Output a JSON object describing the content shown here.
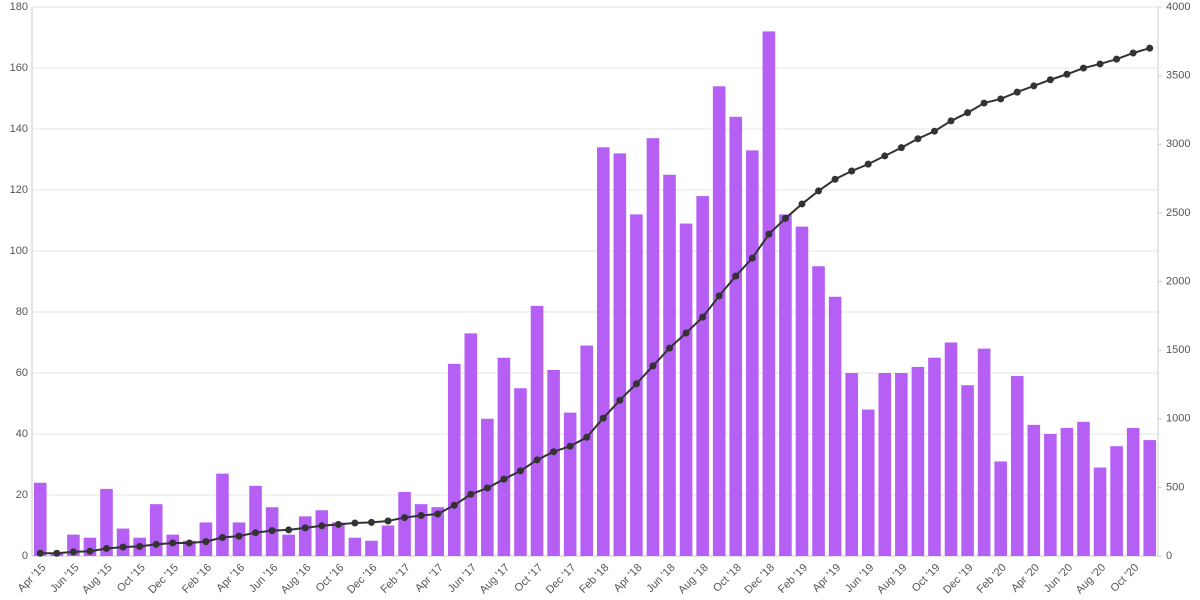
{
  "chart_data": {
    "type": "bar",
    "categories": [
      "Apr '15",
      null,
      "Jun '15",
      null,
      "Aug '15",
      null,
      "Oct '15",
      null,
      "Dec '15",
      null,
      "Feb '16",
      null,
      "Apr '16",
      null,
      "Jun '16",
      null,
      "Aug '16",
      null,
      "Oct '16",
      null,
      "Dec '16",
      null,
      "Feb '17",
      null,
      "Apr '17",
      null,
      "Jun '17",
      null,
      "Aug '17",
      null,
      "Oct '17",
      null,
      "Dec '17",
      null,
      "Feb '18",
      null,
      "Apr '18",
      null,
      "Jun '18",
      null,
      "Aug '18",
      null,
      "Oct '18",
      null,
      "Dec '18",
      null,
      "Feb '19",
      null,
      "Apr '19",
      null,
      "Jun '19",
      null,
      "Aug '19",
      null,
      "Oct '19",
      null,
      "Dec '19",
      null,
      "Feb '20",
      null,
      "Apr '20",
      null,
      "Jun '20",
      null,
      "Aug '20",
      null,
      "Oct '20",
      null
    ],
    "series": [
      {
        "type": "bar",
        "color": "#b65ff5",
        "values": [
          24,
          1,
          7,
          6,
          22,
          9,
          6,
          17,
          7,
          5,
          11,
          27,
          11,
          23,
          16,
          7,
          13,
          15,
          11,
          6,
          5,
          10,
          21,
          17,
          16,
          63,
          73,
          45,
          65,
          55,
          82,
          61,
          47,
          69,
          134,
          132,
          112,
          137,
          125,
          109,
          118,
          154,
          144,
          133,
          172,
          112,
          108,
          95,
          85,
          60,
          48,
          60,
          60,
          62,
          65,
          70,
          56,
          68,
          31,
          59,
          43,
          40,
          42,
          44,
          29,
          36,
          42,
          38
        ]
      },
      {
        "type": "line",
        "axis": "y2",
        "color": "#333333",
        "values": [
          20,
          20,
          30,
          35,
          55,
          65,
          70,
          85,
          95,
          95,
          105,
          135,
          145,
          170,
          185,
          190,
          205,
          220,
          230,
          240,
          245,
          255,
          280,
          295,
          306,
          370,
          450,
          495,
          560,
          620,
          700,
          760,
          800,
          865,
          1005,
          1135,
          1255,
          1385,
          1515,
          1625,
          1740,
          1895,
          2040,
          2170,
          2345,
          2460,
          2565,
          2660,
          2745,
          2805,
          2855,
          2915,
          2975,
          3040,
          3095,
          3170,
          3230,
          3300,
          3330,
          3380,
          3425,
          3470,
          3510,
          3555,
          3585,
          3620,
          3665,
          3700
        ]
      }
    ],
    "ylim": [
      0,
      180
    ],
    "yticks": [
      0,
      20,
      40,
      60,
      80,
      100,
      120,
      140,
      160,
      180
    ],
    "y2lim": [
      0,
      4000
    ],
    "y2ticks": [
      0,
      500,
      1000,
      1500,
      2000,
      2500,
      3000,
      3500,
      4000
    ],
    "grid": true
  }
}
